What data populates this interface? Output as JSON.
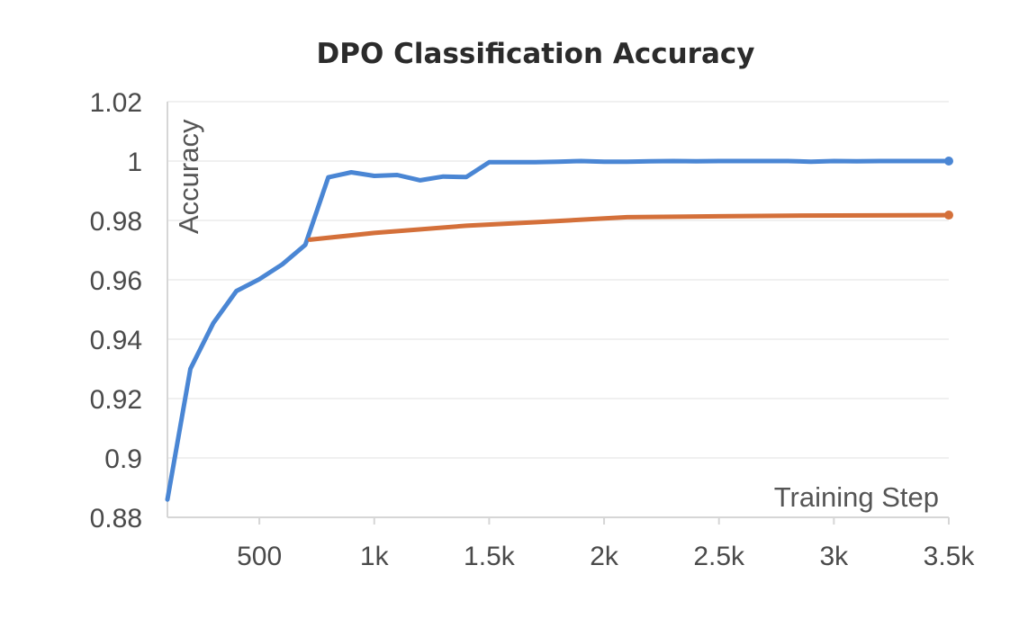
{
  "chart_data": {
    "type": "line",
    "title": "DPO Classification Accuracy",
    "xlabel": "Training Step",
    "ylabel": "Accuracy",
    "xlim": [
      100,
      3500
    ],
    "ylim": [
      0.88,
      1.02
    ],
    "x_ticks": [
      500,
      1000,
      1500,
      2000,
      2500,
      3000,
      3500
    ],
    "x_tick_labels": [
      "500",
      "1k",
      "1.5k",
      "2k",
      "2.5k",
      "3k",
      "3.5k"
    ],
    "y_ticks": [
      0.88,
      0.9,
      0.92,
      0.94,
      0.96,
      0.98,
      1.0,
      1.02
    ],
    "y_tick_labels": [
      "0.88",
      "0.9",
      "0.92",
      "0.94",
      "0.96",
      "0.98",
      "1",
      "1.02"
    ],
    "grid": true,
    "legend": "none",
    "series": [
      {
        "color": "#4a86d4",
        "x": [
          100,
          200,
          300,
          400,
          500,
          600,
          700,
          800,
          900,
          1000,
          1100,
          1200,
          1300,
          1400,
          1500,
          1600,
          1700,
          1800,
          1900,
          2000,
          2100,
          2200,
          2300,
          2400,
          2500,
          2600,
          2700,
          2800,
          2900,
          3000,
          3100,
          3200,
          3300,
          3400,
          3500
        ],
        "y": [
          0.886,
          0.93,
          0.9455,
          0.9562,
          0.9602,
          0.9652,
          0.9718,
          0.9945,
          0.9962,
          0.995,
          0.9953,
          0.9935,
          0.9948,
          0.9946,
          0.9996,
          0.9996,
          0.9996,
          0.9998,
          1.0,
          0.9998,
          0.9998,
          0.9999,
          1.0,
          0.9999,
          1.0,
          1.0,
          1.0,
          1.0,
          0.9998,
          1.0,
          0.9999,
          1.0,
          1.0,
          1.0,
          1.0
        ]
      },
      {
        "color": "#d4703a",
        "x": [
          720,
          1000,
          1400,
          1700,
          2100,
          2500,
          2800,
          3500
        ],
        "y": [
          0.9735,
          0.9758,
          0.9782,
          0.9794,
          0.9811,
          0.9814,
          0.9816,
          0.9818
        ]
      }
    ]
  }
}
